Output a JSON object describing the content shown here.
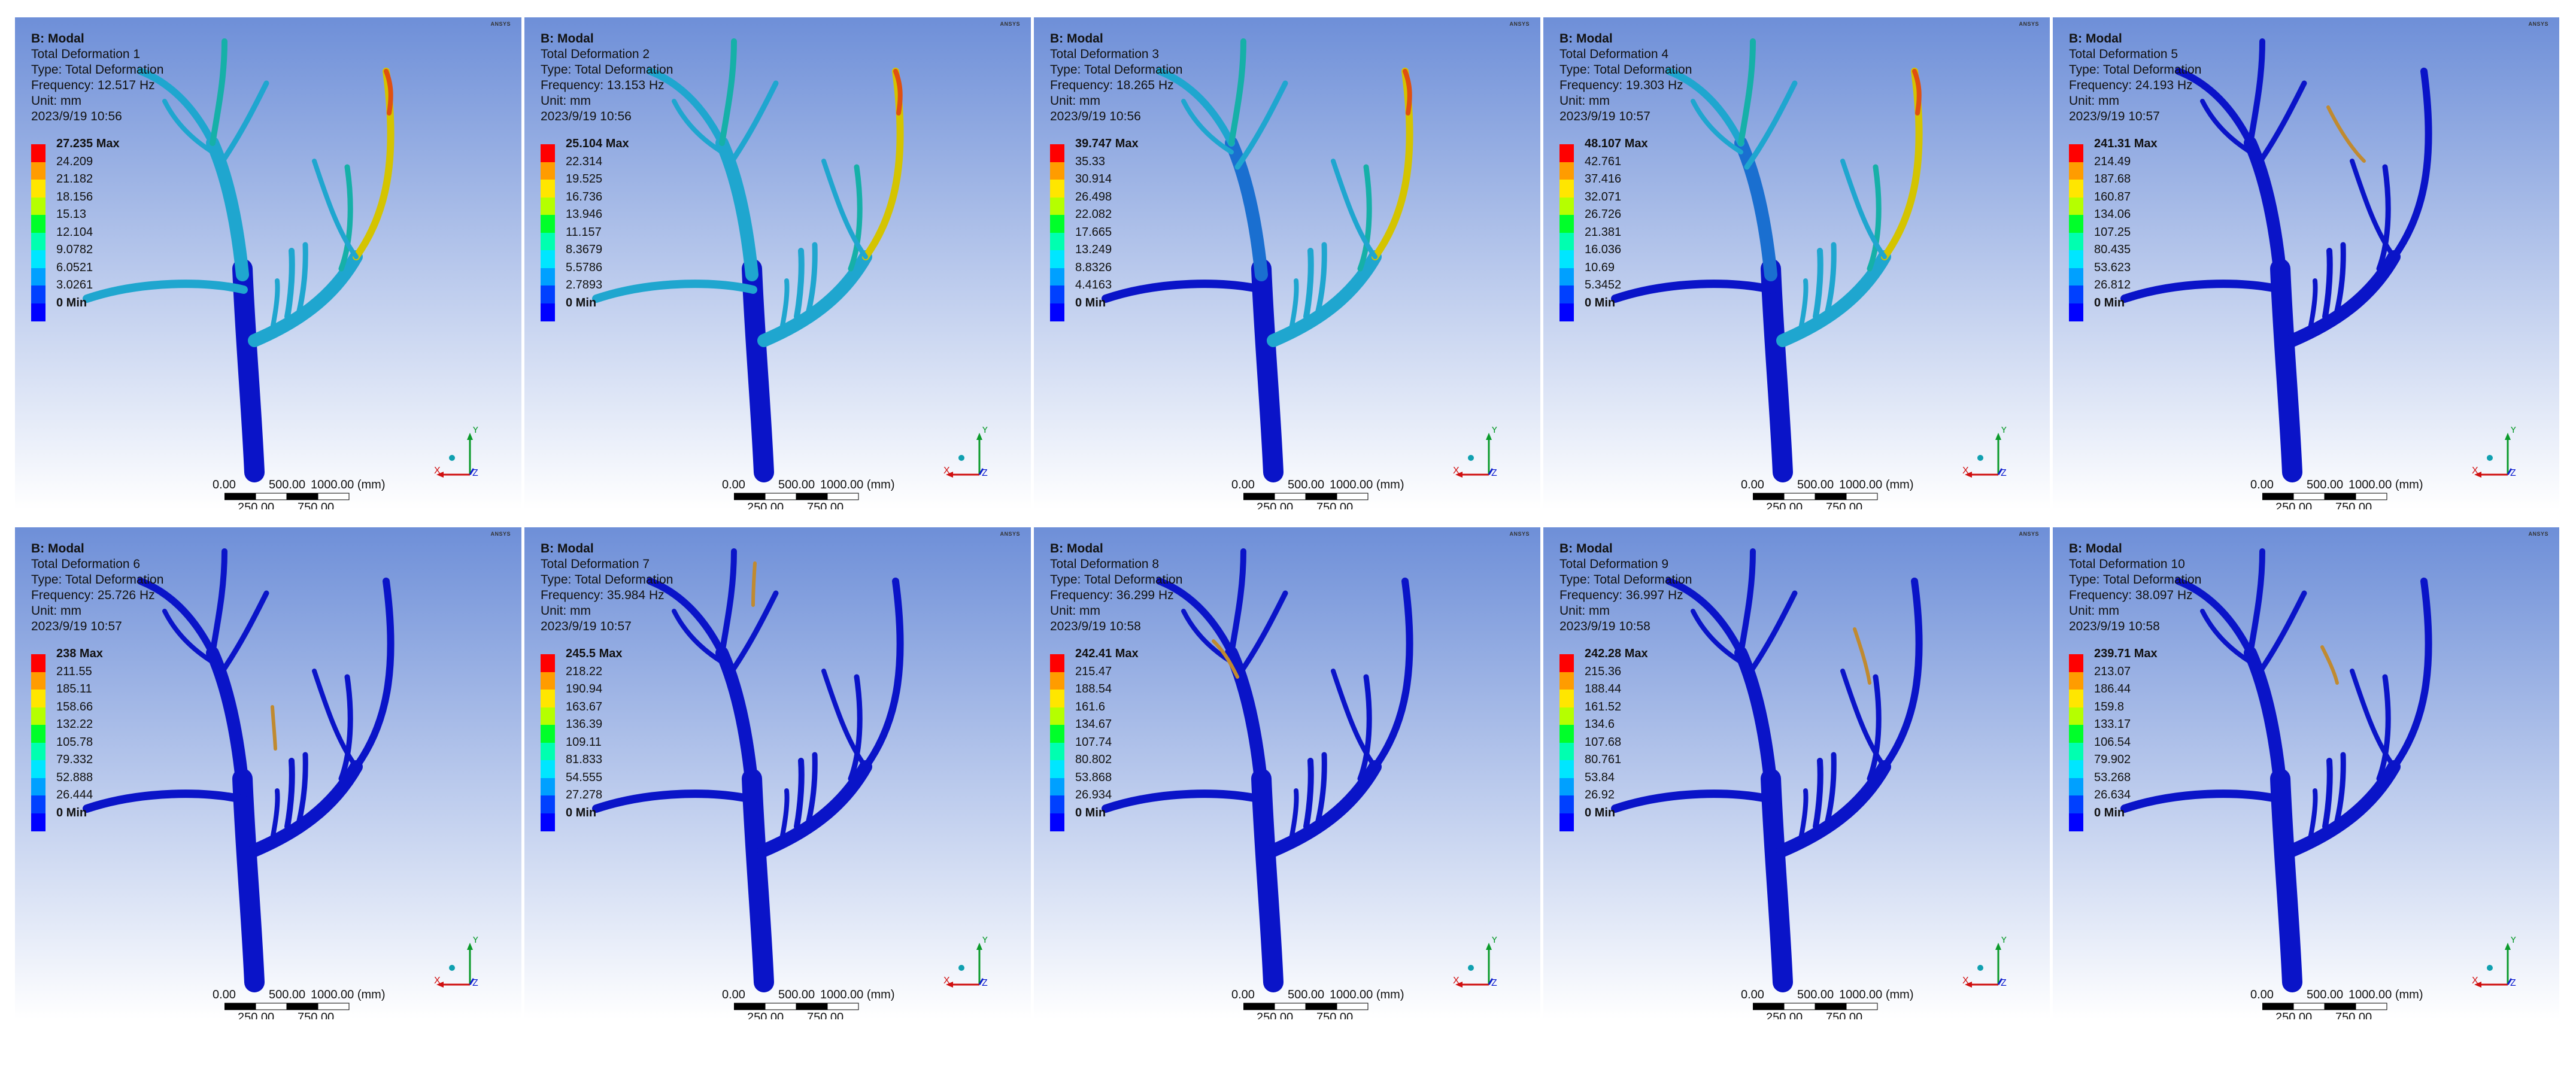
{
  "panels": [
    {
      "analysis": "B: Modal",
      "title": "Total Deformation 1",
      "type": "Type: Total Deformation",
      "frequency": "Frequency: 12.517 Hz",
      "unit": "Unit: mm",
      "timestamp": "2023/9/19 10:56",
      "legend": [
        "27.235 Max",
        "24.209",
        "21.182",
        "18.156",
        "15.13",
        "12.104",
        "9.0782",
        "6.0521",
        "3.0261",
        "0 Min"
      ],
      "mode": "low"
    },
    {
      "analysis": "B: Modal",
      "title": "Total Deformation 2",
      "type": "Type: Total Deformation",
      "frequency": "Frequency: 13.153 Hz",
      "unit": "Unit: mm",
      "timestamp": "2023/9/19 10:56",
      "legend": [
        "25.104 Max",
        "22.314",
        "19.525",
        "16.736",
        "13.946",
        "11.157",
        "8.3679",
        "5.5786",
        "2.7893",
        "0 Min"
      ],
      "mode": "low"
    },
    {
      "analysis": "B: Modal",
      "title": "Total Deformation 3",
      "type": "Type: Total Deformation",
      "frequency": "Frequency: 18.265 Hz",
      "unit": "Unit: mm",
      "timestamp": "2023/9/19 10:56",
      "legend": [
        "39.747 Max",
        "35.33",
        "30.914",
        "26.498",
        "22.082",
        "17.665",
        "13.249",
        "8.8326",
        "4.4163",
        "0 Min"
      ],
      "mode": "mid"
    },
    {
      "analysis": "B: Modal",
      "title": "Total Deformation 4",
      "type": "Type: Total Deformation",
      "frequency": "Frequency: 19.303 Hz",
      "unit": "Unit: mm",
      "timestamp": "2023/9/19 10:57",
      "legend": [
        "48.107 Max",
        "42.761",
        "37.416",
        "32.071",
        "26.726",
        "21.381",
        "16.036",
        "10.69",
        "5.3452",
        "0 Min"
      ],
      "mode": "mid"
    },
    {
      "analysis": "B: Modal",
      "title": "Total Deformation 5",
      "type": "Type: Total Deformation",
      "frequency": "Frequency: 24.193 Hz",
      "unit": "Unit: mm",
      "timestamp": "2023/9/19 10:57",
      "legend": [
        "241.31 Max",
        "214.49",
        "187.68",
        "160.87",
        "134.06",
        "107.25",
        "80.435",
        "53.623",
        "26.812",
        "0 Min"
      ],
      "mode": "high"
    },
    {
      "analysis": "B: Modal",
      "title": "Total Deformation 6",
      "type": "Type: Total Deformation",
      "frequency": "Frequency: 25.726 Hz",
      "unit": "Unit: mm",
      "timestamp": "2023/9/19 10:57",
      "legend": [
        "238 Max",
        "211.55",
        "185.11",
        "158.66",
        "132.22",
        "105.78",
        "79.332",
        "52.888",
        "26.444",
        "0 Min"
      ],
      "mode": "high"
    },
    {
      "analysis": "B: Modal",
      "title": "Total Deformation 7",
      "type": "Type: Total Deformation",
      "frequency": "Frequency: 35.984 Hz",
      "unit": "Unit: mm",
      "timestamp": "2023/9/19 10:57",
      "legend": [
        "245.5 Max",
        "218.22",
        "190.94",
        "163.67",
        "136.39",
        "109.11",
        "81.833",
        "54.555",
        "27.278",
        "0 Min"
      ],
      "mode": "high"
    },
    {
      "analysis": "B: Modal",
      "title": "Total Deformation 8",
      "type": "Type: Total Deformation",
      "frequency": "Frequency: 36.299 Hz",
      "unit": "Unit: mm",
      "timestamp": "2023/9/19 10:58",
      "legend": [
        "242.41 Max",
        "215.47",
        "188.54",
        "161.6",
        "134.67",
        "107.74",
        "80.802",
        "53.868",
        "26.934",
        "0 Min"
      ],
      "mode": "high"
    },
    {
      "analysis": "B: Modal",
      "title": "Total Deformation 9",
      "type": "Type: Total Deformation",
      "frequency": "Frequency: 36.997 Hz",
      "unit": "Unit: mm",
      "timestamp": "2023/9/19 10:58",
      "legend": [
        "242.28 Max",
        "215.36",
        "188.44",
        "161.52",
        "134.6",
        "107.68",
        "80.761",
        "53.84",
        "26.92",
        "0 Min"
      ],
      "mode": "high"
    },
    {
      "analysis": "B: Modal",
      "title": "Total Deformation 10",
      "type": "Type: Total Deformation",
      "frequency": "Frequency: 38.097 Hz",
      "unit": "Unit: mm",
      "timestamp": "2023/9/19 10:58",
      "legend": [
        "239.71 Max",
        "213.07",
        "186.44",
        "159.8",
        "133.17",
        "106.54",
        "79.902",
        "53.268",
        "26.634",
        "0 Min"
      ],
      "mode": "high"
    }
  ],
  "legend_colors": [
    "#ff0000",
    "#ff9c00",
    "#ffe600",
    "#b5ff00",
    "#00ff2a",
    "#00ffb0",
    "#00e6ff",
    "#00a0ff",
    "#0040ff",
    "#0000ff"
  ],
  "scale_bar": {
    "top_labels": [
      "0.00",
      "500.00",
      "1000.00 (mm)"
    ],
    "bottom_labels": [
      "250.00",
      "750.00"
    ]
  },
  "triad": {
    "x": "X",
    "y": "Y",
    "z": "Z"
  },
  "logo_text": "ANSYS",
  "colors": {
    "bg_top": "#6e8fd8",
    "bg_bottom": "#ffffff",
    "trunk": "#0a14c8"
  }
}
